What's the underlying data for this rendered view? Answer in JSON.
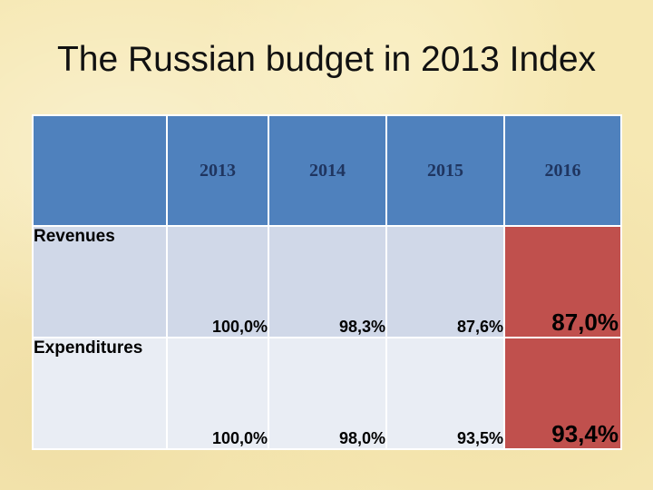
{
  "title": "The Russian budget in 2013 Index",
  "table": {
    "header": [
      "",
      "2013",
      "2014",
      "2015",
      "2016"
    ],
    "rows": [
      {
        "label": "Revenues",
        "values": [
          "100,0%",
          "98,3%",
          "87,6%",
          "87,0%"
        ]
      },
      {
        "label": "Expenditures",
        "values": [
          "100,0%",
          "98,0%",
          "93,5%",
          "93,4%"
        ]
      }
    ]
  },
  "colors": {
    "header_fill": "#4f81bd",
    "header_text": "#1f3560",
    "row1_fill": "#d0d8e8",
    "row2_fill": "#e9edf4",
    "highlight_fill": "#c0504d",
    "background": "#f6e8b3"
  }
}
